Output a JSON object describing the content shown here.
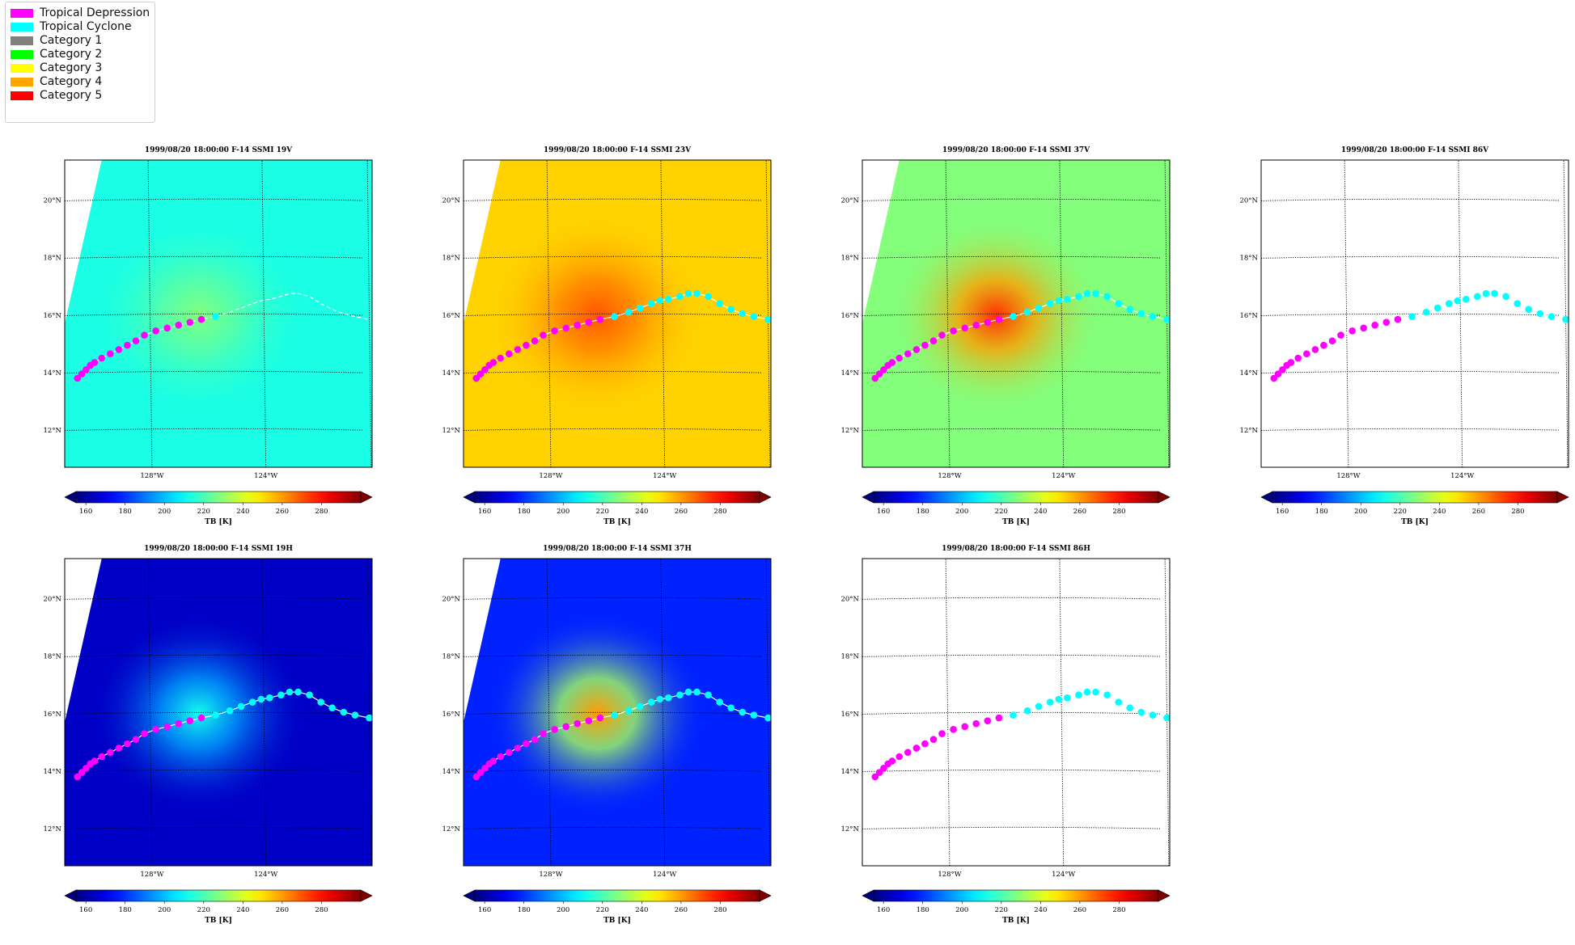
{
  "legend": {
    "items": [
      {
        "label": "Tropical Depression",
        "color": "#ff00ff"
      },
      {
        "label": "Tropical Cyclone",
        "color": "#00ffff"
      },
      {
        "label": "Category 1",
        "color": "#808080"
      },
      {
        "label": "Category 2",
        "color": "#00ff00"
      },
      {
        "label": "Category 3",
        "color": "#ffff00"
      },
      {
        "label": "Category 4",
        "color": "#ffa500"
      },
      {
        "label": "Category 5",
        "color": "#ff0000"
      }
    ]
  },
  "chart_data": {
    "type": "scatter",
    "map": {
      "lat_ticks": [
        12,
        14,
        16,
        18,
        20
      ],
      "lat_tick_labels": [
        "12°N",
        "14°N",
        "16°N",
        "18°N",
        "20°N"
      ],
      "lon_ticks": [
        -128,
        -124
      ],
      "lon_tick_labels": [
        "128°W",
        "124°W"
      ],
      "lat_range": [
        10.7,
        21.4
      ],
      "lon_range": [
        -131.0,
        -120.2
      ],
      "grid": true
    },
    "colorbar": {
      "label": "TB [K]",
      "ticks": [
        160,
        180,
        200,
        220,
        240,
        260,
        280
      ],
      "range": [
        155,
        300
      ],
      "extend": "both",
      "colormap": "jet"
    },
    "track": {
      "depression": {
        "name": "Tropical Depression",
        "color": "#ff00ff",
        "points": [
          [
            -130.55,
            13.8
          ],
          [
            -130.4,
            13.95
          ],
          [
            -130.25,
            14.1
          ],
          [
            -130.1,
            14.25
          ],
          [
            -129.95,
            14.35
          ],
          [
            -129.7,
            14.5
          ],
          [
            -129.4,
            14.65
          ],
          [
            -129.1,
            14.8
          ],
          [
            -128.8,
            14.95
          ],
          [
            -128.5,
            15.1
          ],
          [
            -128.2,
            15.3
          ],
          [
            -127.8,
            15.45
          ],
          [
            -127.4,
            15.55
          ],
          [
            -127.0,
            15.65
          ],
          [
            -126.6,
            15.75
          ],
          [
            -126.2,
            15.85
          ]
        ]
      },
      "cyclone": {
        "name": "Tropical Cyclone",
        "color": "#00ffff",
        "points": [
          [
            -125.7,
            15.95
          ],
          [
            -125.2,
            16.1
          ],
          [
            -124.8,
            16.25
          ],
          [
            -124.4,
            16.4
          ],
          [
            -124.1,
            16.5
          ],
          [
            -123.8,
            16.55
          ],
          [
            -123.4,
            16.65
          ],
          [
            -123.1,
            16.75
          ],
          [
            -122.8,
            16.75
          ],
          [
            -122.4,
            16.65
          ],
          [
            -122.0,
            16.4
          ],
          [
            -121.6,
            16.2
          ],
          [
            -121.2,
            16.05
          ],
          [
            -120.8,
            15.95
          ],
          [
            -120.3,
            15.85
          ]
        ]
      }
    },
    "panels": [
      {
        "title": "1999/08/20 18:00:00  F-14 SSMI 19V",
        "channel": "19V",
        "field_level_K": 213,
        "storm_level_K": 228,
        "track_markers": "partial"
      },
      {
        "title": "1999/08/20 18:00:00  F-14 SSMI 23V",
        "channel": "23V",
        "field_level_K": 252,
        "storm_level_K": 270,
        "track_markers": "full"
      },
      {
        "title": "1999/08/20 18:00:00  F-14 SSMI 37V",
        "channel": "37V",
        "field_level_K": 228,
        "storm_level_K": 275,
        "track_markers": "full"
      },
      {
        "title": "1999/08/20 18:00:00  F-14 SSMI 86V",
        "channel": "86V",
        "field_level_K": null,
        "storm_level_K": null,
        "track_markers": "full"
      },
      {
        "title": "1999/08/20 18:00:00  F-14 SSMI 19H",
        "channel": "19H",
        "field_level_K": 165,
        "storm_level_K": 212,
        "track_markers": "full"
      },
      {
        "title": "1999/08/20 18:00:00  F-14 SSMI 37H",
        "channel": "37H",
        "field_level_K": 178,
        "storm_level_K": 260,
        "track_markers": "full"
      },
      {
        "title": "1999/08/20 18:00:00  F-14 SSMI 86H",
        "channel": "86H",
        "field_level_K": null,
        "storm_level_K": null,
        "track_markers": "full"
      }
    ]
  }
}
